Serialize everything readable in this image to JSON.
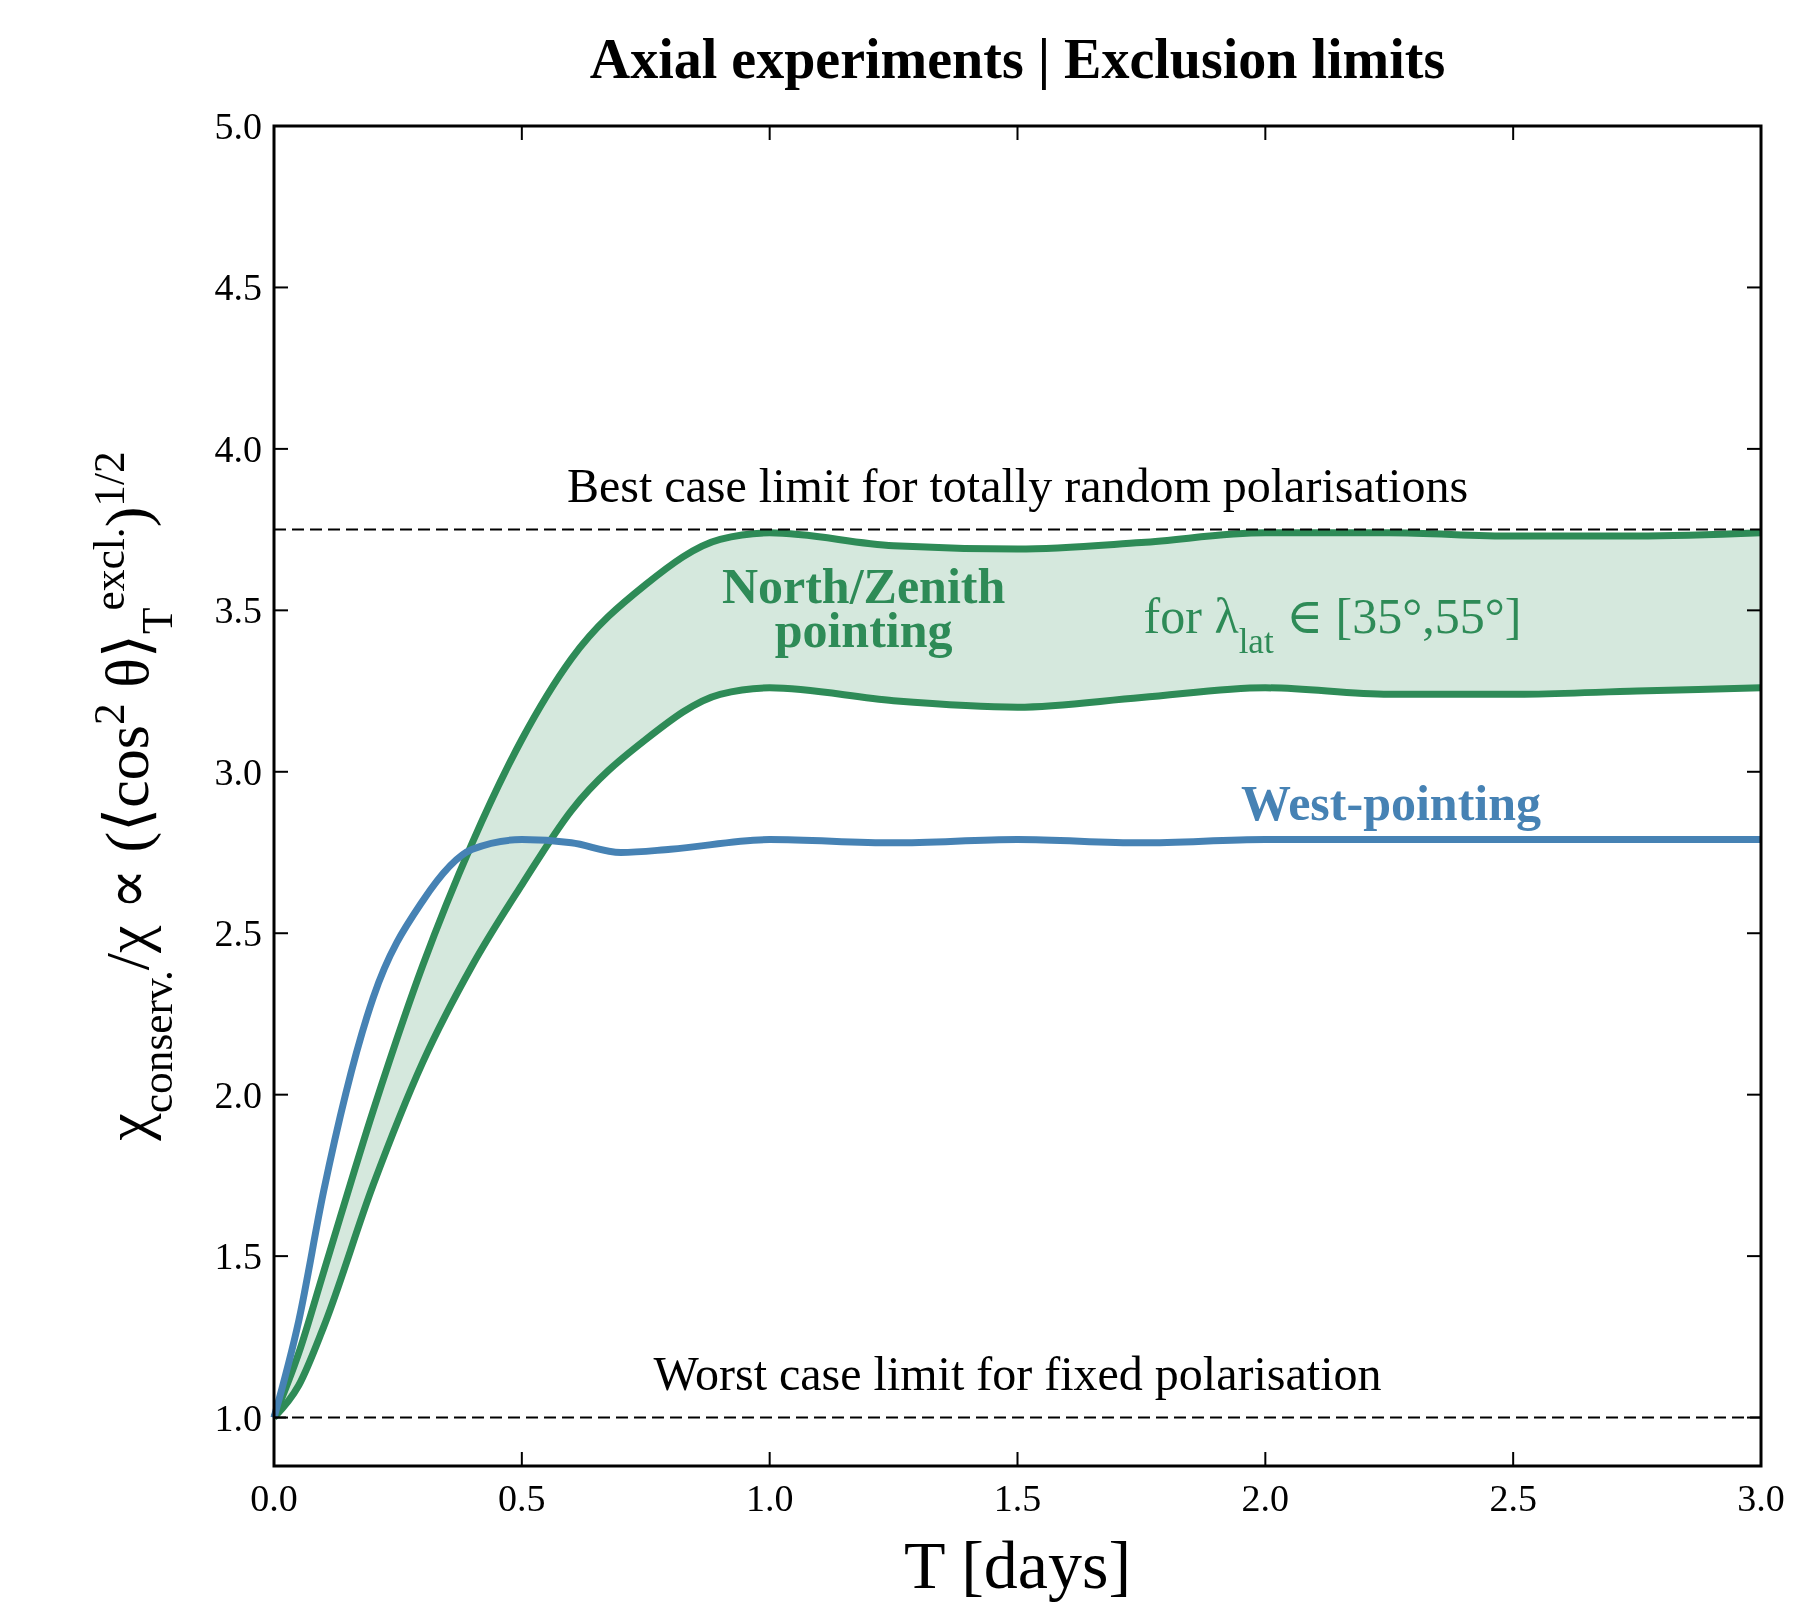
{
  "chart_data": {
    "type": "line",
    "title": "Axial experiments | Exclusion limits",
    "xlabel": "T [days]",
    "ylabel": "χ$_{conserv.}$/χ ∝ (⟨cos$^{2}$ θ⟩$_{T}$$^{excl.}$)$^{1/2}$",
    "xlim": [
      0,
      3
    ],
    "ylim": [
      0.85,
      5
    ],
    "xticks": [
      {
        "value": 0,
        "label": "0.0"
      },
      0.5,
      {
        "value": 1,
        "label": "1.0"
      },
      1.5,
      {
        "value": 2,
        "label": "2.0"
      },
      2.5,
      {
        "value": 3,
        "label": "3.0"
      }
    ],
    "yticks": [
      {
        "value": 1,
        "label": "1.0"
      },
      1.5,
      {
        "value": 2,
        "label": "2.0"
      },
      2.5,
      {
        "value": 3,
        "label": "3.0"
      },
      3.5,
      {
        "value": 4,
        "label": "4.0"
      },
      4.5,
      {
        "value": 5,
        "label": "5.0"
      }
    ],
    "grid": false,
    "line_style": "solid",
    "series": [
      {
        "name": "North/Zenith pointing",
        "color": "#2e8b57",
        "x": [
          0,
          0.05,
          0.1,
          0.2,
          0.3,
          0.4,
          0.5,
          0.6,
          0.75,
          0.9,
          1,
          1.25,
          1.5,
          1.75,
          2,
          2.25,
          2.5,
          2.75,
          3
        ],
        "values": [
          1,
          1.2,
          1.45,
          1.95,
          2.4,
          2.78,
          3.1,
          3.35,
          3.58,
          3.72,
          3.74,
          3.7,
          3.69,
          3.71,
          3.74,
          3.74,
          3.73,
          3.73,
          3.74
        ],
        "lower": [
          1,
          1.1,
          1.28,
          1.72,
          2.1,
          2.4,
          2.65,
          2.88,
          3.1,
          3.24,
          3.26,
          3.22,
          3.2,
          3.23,
          3.26,
          3.24,
          3.24,
          3.25,
          3.26
        ],
        "upper": [
          1,
          1.2,
          1.45,
          1.95,
          2.4,
          2.78,
          3.1,
          3.35,
          3.58,
          3.72,
          3.74,
          3.7,
          3.69,
          3.71,
          3.74,
          3.74,
          3.73,
          3.73,
          3.74
        ]
      },
      {
        "color": "#2e8b57",
        "x": [
          0,
          0.05,
          0.1,
          0.2,
          0.3,
          0.4,
          0.5,
          0.6,
          0.75,
          0.9,
          1,
          1.25,
          1.5,
          1.75,
          2,
          2.25,
          2.5,
          2.75,
          3
        ],
        "values": [
          1,
          1.1,
          1.28,
          1.72,
          2.1,
          2.4,
          2.65,
          2.88,
          3.1,
          3.24,
          3.26,
          3.22,
          3.2,
          3.23,
          3.26,
          3.24,
          3.24,
          3.25,
          3.26
        ]
      },
      {
        "name": "West-pointing",
        "color": "#4682b4",
        "x": [
          0,
          0.05,
          0.1,
          0.2,
          0.3,
          0.4,
          0.5,
          0.6,
          0.7,
          0.8,
          1,
          1.25,
          1.5,
          1.75,
          2,
          2.5,
          3
        ],
        "values": [
          1,
          1.3,
          1.7,
          2.3,
          2.6,
          2.76,
          2.79,
          2.78,
          2.75,
          2.76,
          2.79,
          2.78,
          2.79,
          2.78,
          2.79,
          2.79,
          2.79
        ]
      }
    ],
    "ref_lines": [
      {
        "axis": "y",
        "value": 3.75,
        "label": "Best case limit for totally random polarisations",
        "color": "#000000",
        "line_style": "dashed"
      },
      {
        "axis": "y",
        "value": 1,
        "label": "Worst case limit for fixed polarisation",
        "color": "#000000",
        "line_style": "dashed"
      }
    ],
    "annotations": [
      "for λ$_{lat}$ ∈ [35°,55°]"
    ]
  }
}
